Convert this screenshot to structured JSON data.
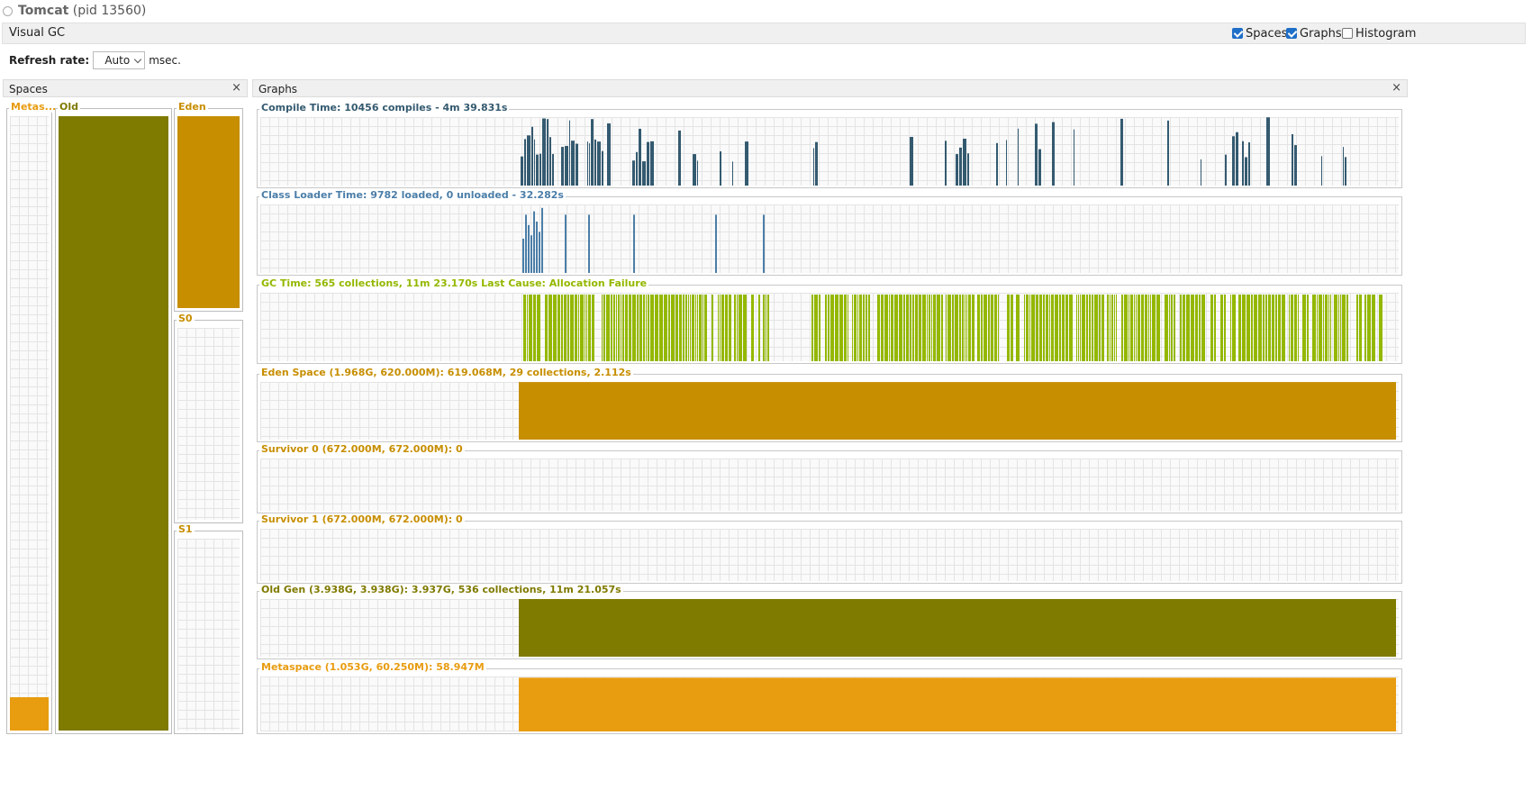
{
  "window": {
    "app_name": "Tomcat",
    "pid_text": "(pid 13560)"
  },
  "visual_gc": {
    "title": "Visual GC",
    "options": [
      {
        "label": "Spaces",
        "checked": true
      },
      {
        "label": "Graphs",
        "checked": true
      },
      {
        "label": "Histogram",
        "checked": false
      }
    ]
  },
  "refresh": {
    "label": "Refresh rate:",
    "value": "Auto",
    "unit": "msec."
  },
  "spaces_panel": {
    "title": "Spaces",
    "close": "×",
    "spaces": [
      {
        "id": "metaspace",
        "label": "Metas...",
        "color": "#e89c10",
        "fill_fraction": 0.055
      },
      {
        "id": "old",
        "label": "Old",
        "color": "#7f7a00",
        "fill_fraction": 1.0
      },
      {
        "id": "eden",
        "label": "Eden",
        "color": "#c78e00",
        "fill_fraction": 1.0
      },
      {
        "id": "s0",
        "label": "S0",
        "color": "#c78e00",
        "fill_fraction": 0
      },
      {
        "id": "s1",
        "label": "S1",
        "color": "#c78e00",
        "fill_fraction": 0
      }
    ]
  },
  "graphs_panel": {
    "title": "Graphs",
    "close": "×",
    "graphs": [
      {
        "id": "compile",
        "label": "Compile Time: 10456 compiles - 4m 39.831s",
        "color": "#345a70",
        "kind": "spikes"
      },
      {
        "id": "classloader",
        "label": "Class Loader Time: 9782 loaded, 0 unloaded - 32.282s",
        "color": "#4b7ea8",
        "kind": "sparse"
      },
      {
        "id": "gc",
        "label": "GC Time: 565 collections, 11m 23.170s  Last Cause: Allocation Failure",
        "color": "#94b800",
        "kind": "dense"
      },
      {
        "id": "eden",
        "label": "Eden Space (1.968G, 620.000M): 619.068M, 29 collections, 2.112s",
        "color": "#c78e00",
        "kind": "area",
        "level": 0.998
      },
      {
        "id": "s0",
        "label": "Survivor 0 (672.000M, 672.000M): 0",
        "color": "#c78e00",
        "kind": "empty"
      },
      {
        "id": "s1",
        "label": "Survivor 1 (672.000M, 672.000M): 0",
        "color": "#c78e00",
        "kind": "empty"
      },
      {
        "id": "old",
        "label": "Old Gen (3.938G, 3.938G): 3.937G, 536 collections, 11m 21.057s",
        "color": "#7f7a00",
        "kind": "area",
        "level": 0.9997
      },
      {
        "id": "meta",
        "label": "Metaspace (1.053G, 60.250M): 58.947M",
        "color": "#e89c10",
        "kind": "area",
        "level": 0.978
      }
    ]
  }
}
